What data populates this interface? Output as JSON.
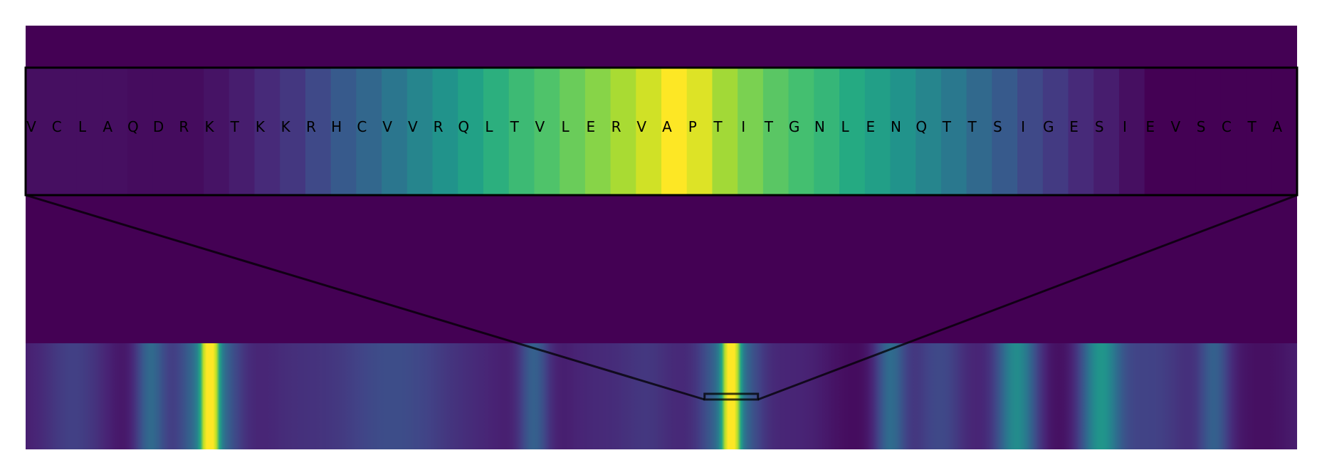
{
  "chart_data": {
    "type": "heatmap",
    "title": "",
    "xlabel": "",
    "ylabel": "",
    "grid": false,
    "colormap": "viridis",
    "background_color": "#440154",
    "zoom_window": {
      "residues": [
        "V",
        "C",
        "L",
        "A",
        "Q",
        "D",
        "R",
        "K",
        "T",
        "K",
        "K",
        "R",
        "H",
        "C",
        "V",
        "V",
        "R",
        "Q",
        "L",
        "T",
        "V",
        "L",
        "E",
        "R",
        "V",
        "A",
        "P",
        "T",
        "I",
        "T",
        "G",
        "N",
        "L",
        "E",
        "N",
        "Q",
        "T",
        "T",
        "S",
        "I",
        "G",
        "E",
        "S",
        "I",
        "E",
        "V",
        "S",
        "C",
        "T",
        "A"
      ],
      "values": [
        0.04,
        0.04,
        0.04,
        0.04,
        0.03,
        0.03,
        0.03,
        0.05,
        0.08,
        0.12,
        0.16,
        0.22,
        0.28,
        0.33,
        0.39,
        0.45,
        0.51,
        0.57,
        0.63,
        0.68,
        0.72,
        0.77,
        0.82,
        0.87,
        0.93,
        1.0,
        0.95,
        0.86,
        0.8,
        0.74,
        0.7,
        0.66,
        0.61,
        0.56,
        0.51,
        0.45,
        0.4,
        0.34,
        0.28,
        0.22,
        0.17,
        0.12,
        0.08,
        0.04,
        0.0,
        0.0,
        0.0,
        0.0,
        0.0,
        0.0
      ]
    },
    "full_sequence_track": {
      "x_range": [
        0,
        1
      ],
      "peaks": [
        {
          "center": 0.145,
          "width": 0.006,
          "value": 0.96
        },
        {
          "center": 0.145,
          "width": 0.022,
          "value": 0.35
        },
        {
          "center": 0.555,
          "width": 0.006,
          "value": 0.96
        },
        {
          "center": 0.555,
          "width": 0.022,
          "value": 0.35
        },
        {
          "center": 0.098,
          "width": 0.012,
          "value": 0.28
        },
        {
          "center": 0.4,
          "width": 0.012,
          "value": 0.25
        },
        {
          "center": 0.68,
          "width": 0.012,
          "value": 0.28
        },
        {
          "center": 0.78,
          "width": 0.016,
          "value": 0.4
        },
        {
          "center": 0.845,
          "width": 0.016,
          "value": 0.42
        },
        {
          "center": 0.935,
          "width": 0.012,
          "value": 0.22
        },
        {
          "center": 0.72,
          "width": 0.02,
          "value": 0.14
        },
        {
          "center": 0.04,
          "width": 0.03,
          "value": 0.1
        },
        {
          "center": 0.25,
          "width": 0.05,
          "value": 0.12
        },
        {
          "center": 0.32,
          "width": 0.04,
          "value": 0.11
        },
        {
          "center": 0.49,
          "width": 0.025,
          "value": 0.12
        },
        {
          "center": 0.89,
          "width": 0.03,
          "value": 0.12
        }
      ],
      "highlight_range": [
        0.534,
        0.576
      ]
    }
  }
}
